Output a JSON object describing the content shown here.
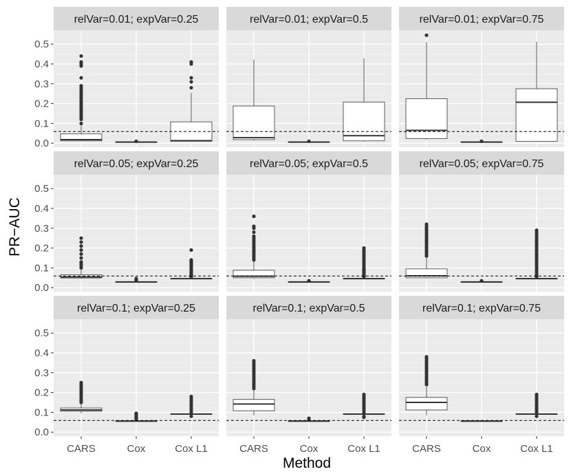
{
  "chart_data": {
    "type": "boxplot",
    "xlabel": "Method",
    "ylabel": "PR−AUC",
    "categories": [
      "CARS",
      "Cox",
      "Cox L1"
    ],
    "ylim": [
      -0.02,
      0.57
    ],
    "y_ticks": [
      0.0,
      0.1,
      0.2,
      0.3,
      0.4,
      0.5
    ],
    "y_tick_labels": [
      "0.0",
      "0.1",
      "0.2",
      "0.3",
      "0.4",
      "0.5"
    ],
    "grid": true,
    "reference_line": {
      "style": "dashed"
    },
    "panels": [
      {
        "label": "relVar=0.01; expVar=0.25",
        "reference": 0.059,
        "boxes": [
          {
            "min": 0.01,
            "q1": 0.012,
            "median": 0.018,
            "q3": 0.047,
            "max": 0.092,
            "outliers": [
              0.1,
              0.12,
              0.13,
              0.14,
              0.15,
              0.16,
              0.17,
              0.18,
              0.19,
              0.2,
              0.21,
              0.22,
              0.23,
              0.24,
              0.25,
              0.26,
              0.27,
              0.28,
              0.29,
              0.33,
              0.39,
              0.4,
              0.41,
              0.44
            ]
          },
          {
            "min": 0.004,
            "q1": 0.005,
            "median": 0.006,
            "q3": 0.007,
            "max": 0.008,
            "outliers": [
              0.01
            ]
          },
          {
            "min": 0.008,
            "q1": 0.01,
            "median": 0.013,
            "q3": 0.108,
            "max": 0.255,
            "outliers": [
              0.28,
              0.31,
              0.33,
              0.4,
              0.41
            ]
          }
        ]
      },
      {
        "label": "relVar=0.01; expVar=0.5",
        "reference": 0.059,
        "boxes": [
          {
            "min": 0.012,
            "q1": 0.018,
            "median": 0.028,
            "q3": 0.188,
            "max": 0.422,
            "outliers": []
          },
          {
            "min": 0.004,
            "q1": 0.005,
            "median": 0.006,
            "q3": 0.007,
            "max": 0.008,
            "outliers": [
              0.01
            ]
          },
          {
            "min": 0.008,
            "q1": 0.012,
            "median": 0.038,
            "q3": 0.208,
            "max": 0.428,
            "outliers": []
          }
        ]
      },
      {
        "label": "relVar=0.01; expVar=0.75",
        "reference": 0.059,
        "boxes": [
          {
            "min": 0.018,
            "q1": 0.024,
            "median": 0.065,
            "q3": 0.225,
            "max": 0.51,
            "outliers": [
              0.545
            ]
          },
          {
            "min": 0.004,
            "q1": 0.005,
            "median": 0.006,
            "q3": 0.007,
            "max": 0.008,
            "outliers": [
              0.01
            ]
          },
          {
            "min": 0.008,
            "q1": 0.01,
            "median": 0.207,
            "q3": 0.275,
            "max": 0.512,
            "outliers": []
          }
        ]
      },
      {
        "label": "relVar=0.05; expVar=0.25",
        "reference": 0.059,
        "boxes": [
          {
            "min": 0.045,
            "q1": 0.049,
            "median": 0.054,
            "q3": 0.065,
            "max": 0.092,
            "outliers": [
              0.1,
              0.11,
              0.12,
              0.13,
              0.15,
              0.17,
              0.19,
              0.21,
              0.23,
              0.25
            ]
          },
          {
            "min": 0.026,
            "q1": 0.028,
            "median": 0.029,
            "q3": 0.03,
            "max": 0.032,
            "outliers": [
              0.035,
              0.038,
              0.042,
              0.046
            ]
          },
          {
            "min": 0.043,
            "q1": 0.045,
            "median": 0.046,
            "q3": 0.047,
            "max": 0.05,
            "outliers": [
              0.055,
              0.06,
              0.065,
              0.07,
              0.075,
              0.08,
              0.085,
              0.09,
              0.095,
              0.1,
              0.105,
              0.11,
              0.115,
              0.12,
              0.125,
              0.13,
              0.135,
              0.14,
              0.19
            ]
          }
        ]
      },
      {
        "label": "relVar=0.05; expVar=0.5",
        "reference": 0.059,
        "boxes": [
          {
            "min": 0.045,
            "q1": 0.05,
            "median": 0.058,
            "q3": 0.088,
            "max": 0.135,
            "outliers": [
              0.14,
              0.15,
              0.16,
              0.17,
              0.18,
              0.19,
              0.2,
              0.21,
              0.22,
              0.23,
              0.24,
              0.25,
              0.26,
              0.28,
              0.3,
              0.31,
              0.36
            ]
          },
          {
            "min": 0.026,
            "q1": 0.028,
            "median": 0.029,
            "q3": 0.03,
            "max": 0.032,
            "outliers": [
              0.035
            ]
          },
          {
            "min": 0.043,
            "q1": 0.045,
            "median": 0.046,
            "q3": 0.047,
            "max": 0.05,
            "outliers": [
              0.055,
              0.06,
              0.065,
              0.07,
              0.075,
              0.08,
              0.085,
              0.09,
              0.095,
              0.1,
              0.11,
              0.12,
              0.13,
              0.14,
              0.15,
              0.16,
              0.17,
              0.18,
              0.19,
              0.2
            ]
          }
        ]
      },
      {
        "label": "relVar=0.05; expVar=0.75",
        "reference": 0.059,
        "boxes": [
          {
            "min": 0.045,
            "q1": 0.05,
            "median": 0.06,
            "q3": 0.095,
            "max": 0.15,
            "outliers": [
              0.16,
              0.17,
              0.18,
              0.19,
              0.2,
              0.21,
              0.22,
              0.23,
              0.24,
              0.25,
              0.26,
              0.27,
              0.28,
              0.29,
              0.3,
              0.31,
              0.32
            ]
          },
          {
            "min": 0.026,
            "q1": 0.028,
            "median": 0.029,
            "q3": 0.03,
            "max": 0.032,
            "outliers": [
              0.035
            ]
          },
          {
            "min": 0.043,
            "q1": 0.045,
            "median": 0.046,
            "q3": 0.047,
            "max": 0.05,
            "outliers": [
              0.055,
              0.06,
              0.07,
              0.08,
              0.09,
              0.1,
              0.11,
              0.12,
              0.13,
              0.14,
              0.15,
              0.16,
              0.17,
              0.18,
              0.19,
              0.2,
              0.21,
              0.22,
              0.23,
              0.24,
              0.25,
              0.26,
              0.27,
              0.28,
              0.29
            ]
          }
        ]
      },
      {
        "label": "relVar=0.1; expVar=0.25",
        "reference": 0.059,
        "boxes": [
          {
            "min": 0.095,
            "q1": 0.105,
            "median": 0.112,
            "q3": 0.122,
            "max": 0.145,
            "outliers": [
              0.15,
              0.16,
              0.17,
              0.18,
              0.19,
              0.2,
              0.21,
              0.22,
              0.23,
              0.24,
              0.25
            ]
          },
          {
            "min": 0.053,
            "q1": 0.055,
            "median": 0.056,
            "q3": 0.057,
            "max": 0.06,
            "outliers": [
              0.065,
              0.07,
              0.075,
              0.08,
              0.085,
              0.09,
              0.095
            ]
          },
          {
            "min": 0.087,
            "q1": 0.09,
            "median": 0.091,
            "q3": 0.093,
            "max": 0.096,
            "outliers": [
              0.08,
              0.1,
              0.11,
              0.12,
              0.13,
              0.14,
              0.15,
              0.16,
              0.17,
              0.18
            ]
          }
        ]
      },
      {
        "label": "relVar=0.1; expVar=0.5",
        "reference": 0.059,
        "boxes": [
          {
            "min": 0.085,
            "q1": 0.108,
            "median": 0.142,
            "q3": 0.165,
            "max": 0.215,
            "outliers": [
              0.22,
              0.23,
              0.24,
              0.25,
              0.26,
              0.27,
              0.28,
              0.29,
              0.3,
              0.31,
              0.32,
              0.33,
              0.34,
              0.35,
              0.36
            ]
          },
          {
            "min": 0.053,
            "q1": 0.055,
            "median": 0.056,
            "q3": 0.057,
            "max": 0.06,
            "outliers": [
              0.065,
              0.07
            ]
          },
          {
            "min": 0.087,
            "q1": 0.09,
            "median": 0.091,
            "q3": 0.093,
            "max": 0.096,
            "outliers": [
              0.075,
              0.08,
              0.1,
              0.11,
              0.12,
              0.13,
              0.14,
              0.15,
              0.16,
              0.17,
              0.18,
              0.19
            ]
          }
        ]
      },
      {
        "label": "relVar=0.1; expVar=0.75",
        "reference": 0.059,
        "boxes": [
          {
            "min": 0.085,
            "q1": 0.112,
            "median": 0.15,
            "q3": 0.175,
            "max": 0.23,
            "outliers": [
              0.24,
              0.25,
              0.26,
              0.27,
              0.28,
              0.29,
              0.3,
              0.31,
              0.32,
              0.33,
              0.34,
              0.35,
              0.36,
              0.37,
              0.38
            ]
          },
          {
            "min": 0.053,
            "q1": 0.055,
            "median": 0.056,
            "q3": 0.057,
            "max": 0.059,
            "outliers": []
          },
          {
            "min": 0.087,
            "q1": 0.09,
            "median": 0.091,
            "q3": 0.093,
            "max": 0.096,
            "outliers": [
              0.08,
              0.1,
              0.11,
              0.12,
              0.13,
              0.14,
              0.15,
              0.16,
              0.17,
              0.18,
              0.19
            ]
          }
        ]
      }
    ]
  },
  "colors": {
    "panel_background": "#ebebeb",
    "strip_background": "#d9d9d9",
    "grid_major": "#ffffff",
    "grid_minor": "#f5f5f5",
    "box_fill": "#ffffff",
    "box_stroke": "#333333",
    "outlier": "#333333",
    "reference_line": "#000000"
  }
}
